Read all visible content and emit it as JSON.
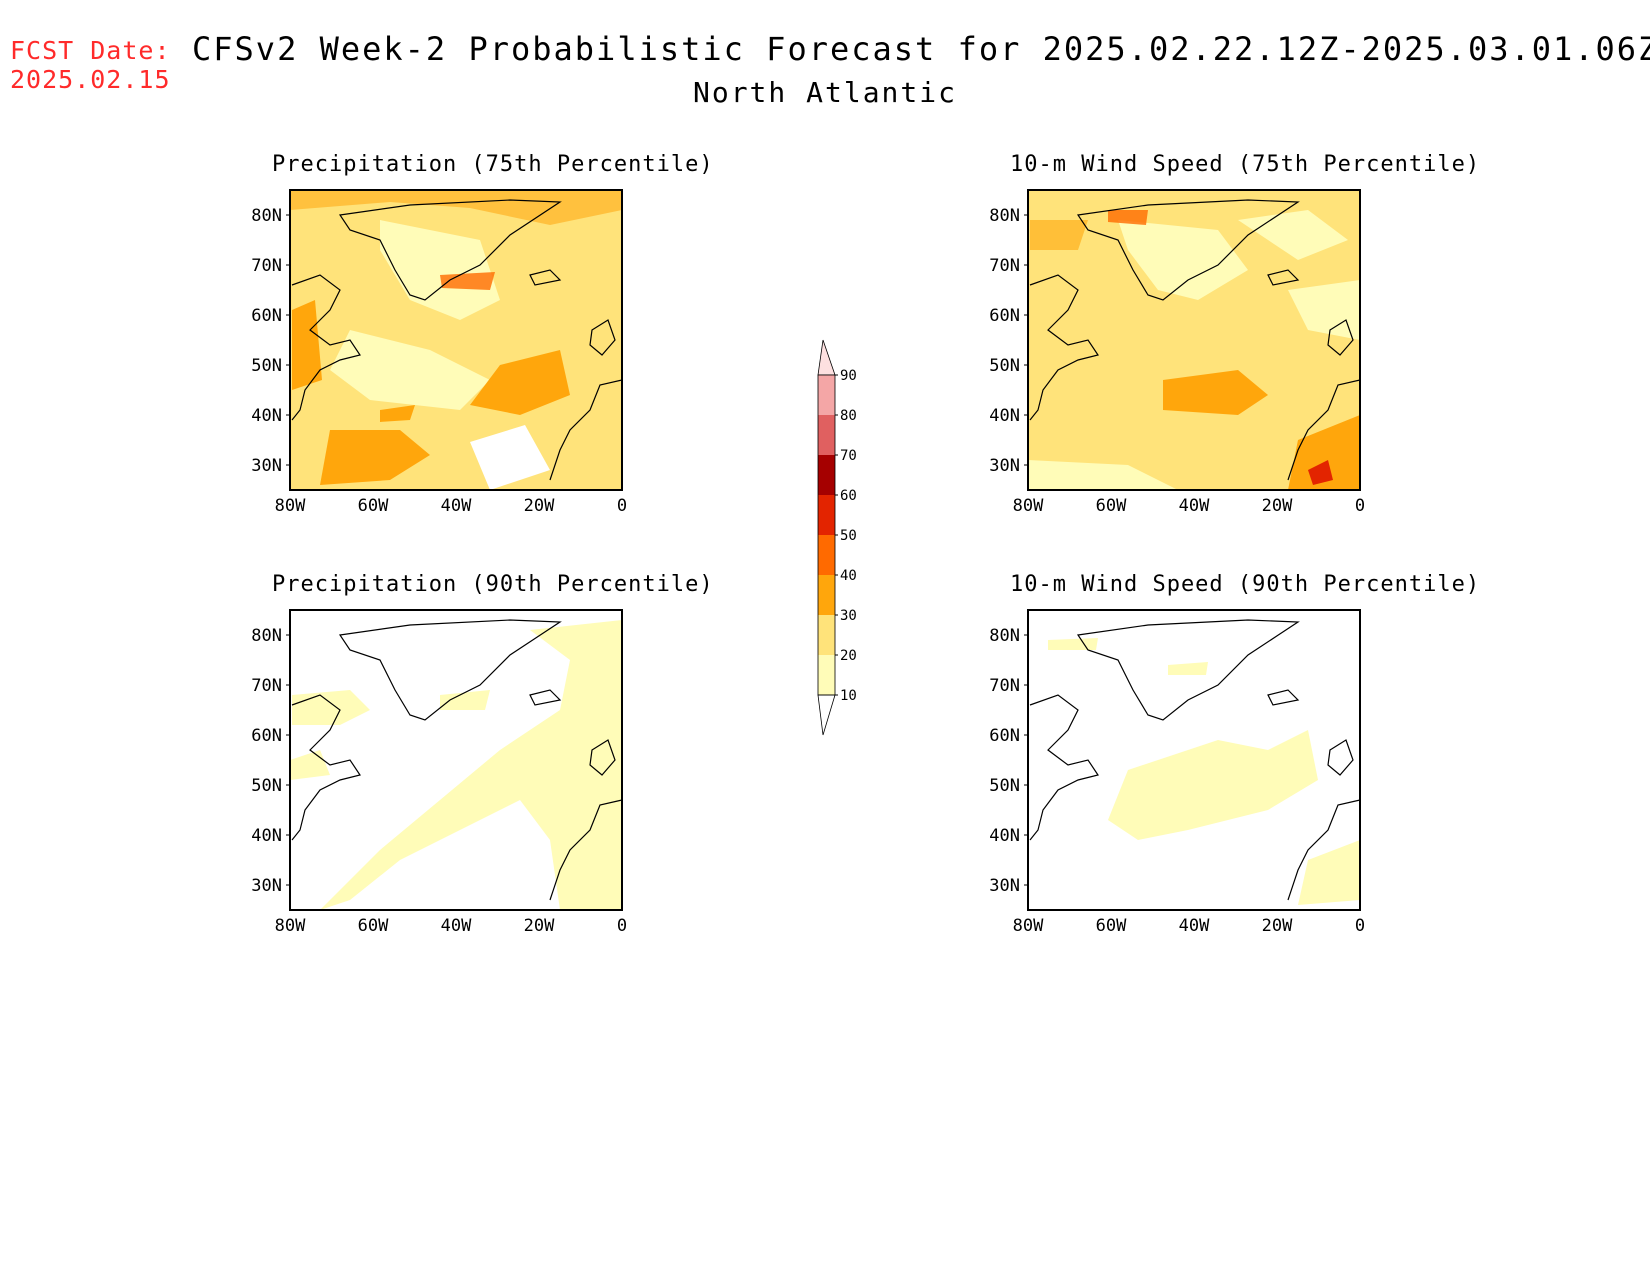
{
  "header": {
    "fcst_label": "FCST Date:",
    "fcst_date": "2025.02.15",
    "title": "CFSv2 Week-2 Probabilistic Forecast for 2025.02.22.12Z-2025.03.01.06Z",
    "subtitle": "North Atlantic"
  },
  "axes": {
    "lat_ticks": [
      "80N",
      "70N",
      "60N",
      "50N",
      "40N",
      "30N"
    ],
    "lon_ticks": [
      "80W",
      "60W",
      "40W",
      "20W",
      "0"
    ]
  },
  "panels": [
    {
      "title": "Precipitation (75th Percentile)",
      "variable": "precipitation",
      "percentile": 75
    },
    {
      "title": "10-m Wind Speed (75th Percentile)",
      "variable": "10m_wind_speed",
      "percentile": 75
    },
    {
      "title": "Precipitation (90th Percentile)",
      "variable": "precipitation",
      "percentile": 90
    },
    {
      "title": "10-m Wind Speed (90th Percentile)",
      "variable": "10m_wind_speed",
      "percentile": 90
    }
  ],
  "colorbar": {
    "labels": [
      "90",
      "80",
      "70",
      "60",
      "50",
      "40",
      "30",
      "20",
      "10"
    ],
    "colors": {
      "10-20": "#fffcb8",
      "20-30": "#ffe37a",
      "30-40": "#ffa60c",
      "40-50": "#ff6a00",
      "50-60": "#e32400",
      "60-70": "#a50000",
      "70-80": "#e06060",
      "80-90": "#f4a6a6",
      "90+": "#fde0e0"
    }
  }
}
